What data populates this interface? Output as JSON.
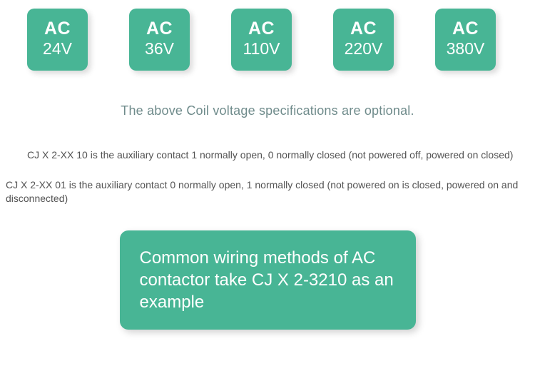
{
  "colors": {
    "tile_bg": "#48b595",
    "tile_text": "#ffffff",
    "caption_text": "#6f8b8b",
    "desc_text": "#535353",
    "wiring_bg": "#48b595",
    "wiring_text": "#ffffff"
  },
  "voltages": [
    {
      "ac": "AC",
      "value": "24V"
    },
    {
      "ac": "AC",
      "value": "36V"
    },
    {
      "ac": "AC",
      "value": "110V"
    },
    {
      "ac": "AC",
      "value": "220V"
    },
    {
      "ac": "AC",
      "value": "380V"
    }
  ],
  "caption": "The above Coil voltage specifications are optional.",
  "desc1": "CJ X 2-XX 10 is the auxiliary contact 1 normally open, 0 normally closed (not powered off, powered on closed)",
  "desc2": "CJ X 2-XX 01 is the auxiliary contact 0 normally open, 1 normally closed (not powered on is closed, powered on and disconnected)",
  "wiring": "Common wiring methods of AC contactor take CJ X 2-3210 as an example"
}
